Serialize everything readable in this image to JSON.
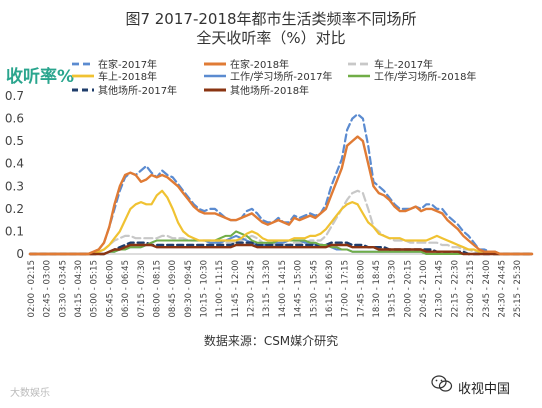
{
  "header": {
    "title_line1": "图7 2017-2018年都市生活类频率不同场所",
    "title_line2": "全天收听率（%）对比"
  },
  "footer": {
    "source": "数据来源：CSM媒介研究",
    "watermark_left": "大数娱乐",
    "watermark_right": "收视中国",
    "watermark_icon": "wechat-icon"
  },
  "chart_data": {
    "type": "line",
    "ylabel": "收听率%",
    "ylim": [
      0,
      0.7
    ],
    "yticks": [
      "0",
      "0.1",
      "0.2",
      "0.3",
      "0.4",
      "0.5",
      "0.6",
      "0.7"
    ],
    "grid": false,
    "legend_position": "top",
    "x": [
      "02:00",
      "02:15",
      "02:30",
      "02:45",
      "03:00",
      "03:15",
      "03:30",
      "03:45",
      "04:00",
      "04:15",
      "04:30",
      "04:45",
      "05:00",
      "05:15",
      "05:30",
      "05:45",
      "06:00",
      "06:15",
      "06:30",
      "06:45",
      "07:00",
      "07:15",
      "07:30",
      "07:45",
      "08:00",
      "08:15",
      "08:30",
      "08:45",
      "09:00",
      "09:15",
      "09:30",
      "09:45",
      "10:00",
      "10:15",
      "10:30",
      "10:45",
      "11:00",
      "11:15",
      "11:30",
      "11:45",
      "12:00",
      "12:15",
      "12:30",
      "12:45",
      "13:00",
      "13:15",
      "13:30",
      "13:45",
      "14:00",
      "14:15",
      "14:30",
      "14:45",
      "15:00",
      "15:15",
      "15:30",
      "15:45",
      "16:00",
      "16:15",
      "16:30",
      "16:45",
      "17:00",
      "17:15",
      "17:30",
      "17:45",
      "18:00",
      "18:15",
      "18:30",
      "18:45",
      "19:00",
      "19:15",
      "19:30",
      "19:45",
      "20:00",
      "20:15",
      "20:30",
      "20:45",
      "21:00",
      "21:15",
      "21:30",
      "21:45",
      "22:00",
      "22:15",
      "22:30",
      "22:45",
      "23:00",
      "23:15",
      "23:30",
      "23:45",
      "24:00",
      "24:15",
      "24:30",
      "24:45",
      "25:00",
      "25:15",
      "25:30",
      "25:45"
    ],
    "xtick_labels": [
      "02:00 - 02:15",
      "02:45 - 03:00",
      "03:30 - 03:45",
      "04:15 - 04:30",
      "05:00 - 05:15",
      "05:45 - 06:00",
      "06:30 - 06:45",
      "07:15 - 07:30",
      "08:00 - 08:15",
      "08:45 - 09:00",
      "09:30 - 09:45",
      "10:15 - 10:30",
      "11:00 - 11:15",
      "11:45 - 12:00",
      "12:30 - 12:45",
      "13:15 - 13:30",
      "14:00 - 14:15",
      "14:45 - 15:00",
      "15:30 - 15:45",
      "16:15 - 16:30",
      "17:00 - 17:15",
      "17:45 - 18:00",
      "18:30 - 18:45",
      "19:15 - 19:30",
      "20:00 - 20:15",
      "20:45 - 21:00",
      "21:30 - 21:45",
      "22:15 - 22:30",
      "23:00 - 23:15",
      "23:45 - 24:00",
      "24:30 - 24:45",
      "25:15 - 25:30"
    ],
    "series": [
      {
        "name": "在家-2017年",
        "color": "#5b8bd0",
        "dash": "7,4",
        "width": 2.2,
        "values": [
          0,
          0,
          0,
          0,
          0,
          0,
          0,
          0,
          0,
          0,
          0,
          0,
          0.01,
          0.02,
          0.05,
          0.12,
          0.2,
          0.28,
          0.34,
          0.36,
          0.35,
          0.37,
          0.39,
          0.36,
          0.34,
          0.37,
          0.35,
          0.34,
          0.31,
          0.28,
          0.25,
          0.22,
          0.2,
          0.19,
          0.2,
          0.2,
          0.18,
          0.16,
          0.15,
          0.15,
          0.16,
          0.19,
          0.2,
          0.18,
          0.15,
          0.14,
          0.14,
          0.16,
          0.14,
          0.14,
          0.17,
          0.16,
          0.17,
          0.18,
          0.17,
          0.18,
          0.22,
          0.3,
          0.36,
          0.42,
          0.55,
          0.6,
          0.62,
          0.6,
          0.48,
          0.32,
          0.3,
          0.28,
          0.25,
          0.22,
          0.2,
          0.2,
          0.2,
          0.21,
          0.2,
          0.22,
          0.22,
          0.2,
          0.2,
          0.17,
          0.15,
          0.13,
          0.1,
          0.08,
          0.05,
          0.02,
          0.02,
          0.01,
          0.01,
          0,
          0,
          0,
          0,
          0,
          0,
          0
        ]
      },
      {
        "name": "在家-2018年",
        "color": "#e07b35",
        "dash": "",
        "width": 2.4,
        "values": [
          0,
          0,
          0,
          0,
          0,
          0,
          0,
          0,
          0,
          0,
          0,
          0,
          0.01,
          0.02,
          0.05,
          0.12,
          0.22,
          0.3,
          0.35,
          0.36,
          0.35,
          0.32,
          0.33,
          0.35,
          0.34,
          0.35,
          0.34,
          0.32,
          0.3,
          0.27,
          0.24,
          0.21,
          0.19,
          0.18,
          0.18,
          0.18,
          0.17,
          0.16,
          0.15,
          0.15,
          0.16,
          0.17,
          0.18,
          0.16,
          0.14,
          0.13,
          0.14,
          0.15,
          0.14,
          0.13,
          0.16,
          0.15,
          0.16,
          0.17,
          0.16,
          0.18,
          0.2,
          0.26,
          0.32,
          0.38,
          0.48,
          0.5,
          0.52,
          0.5,
          0.4,
          0.3,
          0.27,
          0.26,
          0.24,
          0.21,
          0.19,
          0.19,
          0.2,
          0.21,
          0.19,
          0.2,
          0.2,
          0.19,
          0.18,
          0.15,
          0.13,
          0.11,
          0.08,
          0.06,
          0.04,
          0.02,
          0.01,
          0.01,
          0.01,
          0,
          0,
          0,
          0,
          0,
          0,
          0
        ]
      },
      {
        "name": "车上-2017年",
        "color": "#c8c8c8",
        "dash": "8,4",
        "width": 2.2,
        "values": [
          0,
          0,
          0,
          0,
          0,
          0,
          0,
          0,
          0,
          0,
          0,
          0,
          0,
          0.01,
          0.02,
          0.04,
          0.06,
          0.07,
          0.08,
          0.08,
          0.07,
          0.07,
          0.07,
          0.07,
          0.07,
          0.08,
          0.08,
          0.07,
          0.07,
          0.07,
          0.06,
          0.06,
          0.06,
          0.06,
          0.06,
          0.06,
          0.05,
          0.05,
          0.05,
          0.05,
          0.06,
          0.07,
          0.08,
          0.07,
          0.05,
          0.04,
          0.04,
          0.04,
          0.04,
          0.04,
          0.05,
          0.05,
          0.05,
          0.06,
          0.06,
          0.06,
          0.08,
          0.12,
          0.16,
          0.2,
          0.24,
          0.27,
          0.28,
          0.27,
          0.2,
          0.12,
          0.1,
          0.08,
          0.07,
          0.06,
          0.06,
          0.06,
          0.05,
          0.05,
          0.05,
          0.05,
          0.05,
          0.05,
          0.04,
          0.04,
          0.03,
          0.03,
          0.02,
          0.02,
          0.01,
          0.01,
          0.01,
          0.01,
          0,
          0,
          0,
          0,
          0,
          0,
          0,
          0
        ]
      },
      {
        "name": "车上-2018年",
        "color": "#f0c232",
        "dash": "",
        "width": 2.2,
        "values": [
          0,
          0,
          0,
          0,
          0,
          0,
          0,
          0,
          0,
          0,
          0,
          0,
          0,
          0.01,
          0.02,
          0.04,
          0.07,
          0.1,
          0.15,
          0.2,
          0.22,
          0.23,
          0.22,
          0.22,
          0.26,
          0.28,
          0.25,
          0.2,
          0.14,
          0.1,
          0.08,
          0.07,
          0.06,
          0.06,
          0.06,
          0.06,
          0.06,
          0.06,
          0.06,
          0.06,
          0.07,
          0.09,
          0.1,
          0.09,
          0.07,
          0.06,
          0.06,
          0.06,
          0.06,
          0.06,
          0.07,
          0.07,
          0.07,
          0.08,
          0.08,
          0.09,
          0.11,
          0.14,
          0.17,
          0.2,
          0.22,
          0.23,
          0.22,
          0.18,
          0.14,
          0.12,
          0.09,
          0.08,
          0.07,
          0.07,
          0.07,
          0.06,
          0.06,
          0.06,
          0.06,
          0.06,
          0.07,
          0.08,
          0.07,
          0.06,
          0.05,
          0.04,
          0.03,
          0.02,
          0.02,
          0.01,
          0.01,
          0.01,
          0,
          0,
          0,
          0,
          0,
          0,
          0,
          0
        ]
      },
      {
        "name": "工作/学习场所-2017年",
        "color": "#5b8bd0",
        "dash": "",
        "width": 2,
        "values": [
          0,
          0,
          0,
          0,
          0,
          0,
          0,
          0,
          0,
          0,
          0,
          0,
          0,
          0,
          0,
          0.01,
          0.01,
          0.02,
          0.02,
          0.03,
          0.03,
          0.03,
          0.04,
          0.05,
          0.06,
          0.06,
          0.06,
          0.06,
          0.06,
          0.06,
          0.06,
          0.06,
          0.06,
          0.06,
          0.05,
          0.05,
          0.05,
          0.06,
          0.07,
          0.08,
          0.07,
          0.06,
          0.05,
          0.04,
          0.04,
          0.04,
          0.05,
          0.05,
          0.05,
          0.06,
          0.06,
          0.06,
          0.05,
          0.05,
          0.04,
          0.04,
          0.04,
          0.03,
          0.02,
          0.02,
          0.02,
          0.01,
          0.01,
          0.01,
          0.01,
          0.01,
          0.01,
          0.01,
          0.01,
          0.01,
          0.01,
          0.01,
          0.01,
          0.01,
          0.01,
          0,
          0,
          0,
          0,
          0,
          0,
          0,
          0,
          0,
          0,
          0,
          0,
          0,
          0,
          0,
          0,
          0,
          0,
          0,
          0,
          0
        ]
      },
      {
        "name": "工作/学习场所-2018年",
        "color": "#70ad47",
        "dash": "",
        "width": 2,
        "values": [
          0,
          0,
          0,
          0,
          0,
          0,
          0,
          0,
          0,
          0,
          0,
          0,
          0,
          0,
          0,
          0.01,
          0.01,
          0.02,
          0.02,
          0.03,
          0.03,
          0.03,
          0.04,
          0.05,
          0.06,
          0.06,
          0.06,
          0.06,
          0.06,
          0.06,
          0.06,
          0.06,
          0.06,
          0.06,
          0.06,
          0.06,
          0.07,
          0.08,
          0.08,
          0.1,
          0.09,
          0.08,
          0.06,
          0.05,
          0.05,
          0.05,
          0.05,
          0.06,
          0.06,
          0.06,
          0.06,
          0.06,
          0.06,
          0.05,
          0.05,
          0.04,
          0.04,
          0.03,
          0.03,
          0.02,
          0.02,
          0.01,
          0.01,
          0.01,
          0.01,
          0.01,
          0.01,
          0.01,
          0.01,
          0.01,
          0.01,
          0.01,
          0.01,
          0.01,
          0.01,
          0,
          0,
          0,
          0,
          0,
          0,
          0,
          0,
          0,
          0,
          0,
          0,
          0,
          0,
          0,
          0,
          0,
          0,
          0,
          0,
          0
        ]
      },
      {
        "name": "其他场所-2017年",
        "color": "#1f3d6b",
        "dash": "6,4",
        "width": 2.4,
        "values": [
          0,
          0,
          0,
          0,
          0,
          0,
          0,
          0,
          0,
          0,
          0,
          0,
          0,
          0,
          0,
          0.01,
          0.02,
          0.03,
          0.04,
          0.05,
          0.05,
          0.05,
          0.05,
          0.04,
          0.04,
          0.04,
          0.04,
          0.04,
          0.04,
          0.04,
          0.04,
          0.04,
          0.04,
          0.04,
          0.04,
          0.04,
          0.04,
          0.04,
          0.04,
          0.05,
          0.05,
          0.05,
          0.05,
          0.04,
          0.04,
          0.04,
          0.04,
          0.04,
          0.04,
          0.04,
          0.04,
          0.04,
          0.04,
          0.04,
          0.04,
          0.04,
          0.04,
          0.05,
          0.05,
          0.05,
          0.05,
          0.04,
          0.04,
          0.04,
          0.03,
          0.03,
          0.03,
          0.03,
          0.02,
          0.02,
          0.02,
          0.02,
          0.02,
          0.02,
          0.02,
          0.02,
          0.02,
          0.01,
          0.01,
          0.01,
          0.01,
          0.01,
          0.01,
          0,
          0,
          0,
          0,
          0,
          0,
          0,
          0,
          0,
          0,
          0,
          0,
          0
        ]
      },
      {
        "name": "其他场所-2018年",
        "color": "#8a3412",
        "dash": "",
        "width": 2.4,
        "values": [
          0,
          0,
          0,
          0,
          0,
          0,
          0,
          0,
          0,
          0,
          0,
          0,
          0,
          0,
          0,
          0.01,
          0.02,
          0.02,
          0.03,
          0.04,
          0.04,
          0.04,
          0.04,
          0.04,
          0.03,
          0.03,
          0.03,
          0.03,
          0.03,
          0.03,
          0.03,
          0.03,
          0.03,
          0.03,
          0.03,
          0.03,
          0.03,
          0.03,
          0.03,
          0.04,
          0.04,
          0.04,
          0.04,
          0.03,
          0.03,
          0.03,
          0.03,
          0.03,
          0.03,
          0.03,
          0.03,
          0.03,
          0.03,
          0.03,
          0.03,
          0.03,
          0.03,
          0.04,
          0.04,
          0.04,
          0.04,
          0.03,
          0.03,
          0.03,
          0.03,
          0.03,
          0.02,
          0.02,
          0.02,
          0.02,
          0.02,
          0.02,
          0.02,
          0.02,
          0.02,
          0.01,
          0.01,
          0.01,
          0.01,
          0.01,
          0.01,
          0.01,
          0,
          0,
          0,
          0,
          0,
          0,
          0,
          0,
          0,
          0,
          0,
          0,
          0,
          0
        ]
      }
    ]
  }
}
